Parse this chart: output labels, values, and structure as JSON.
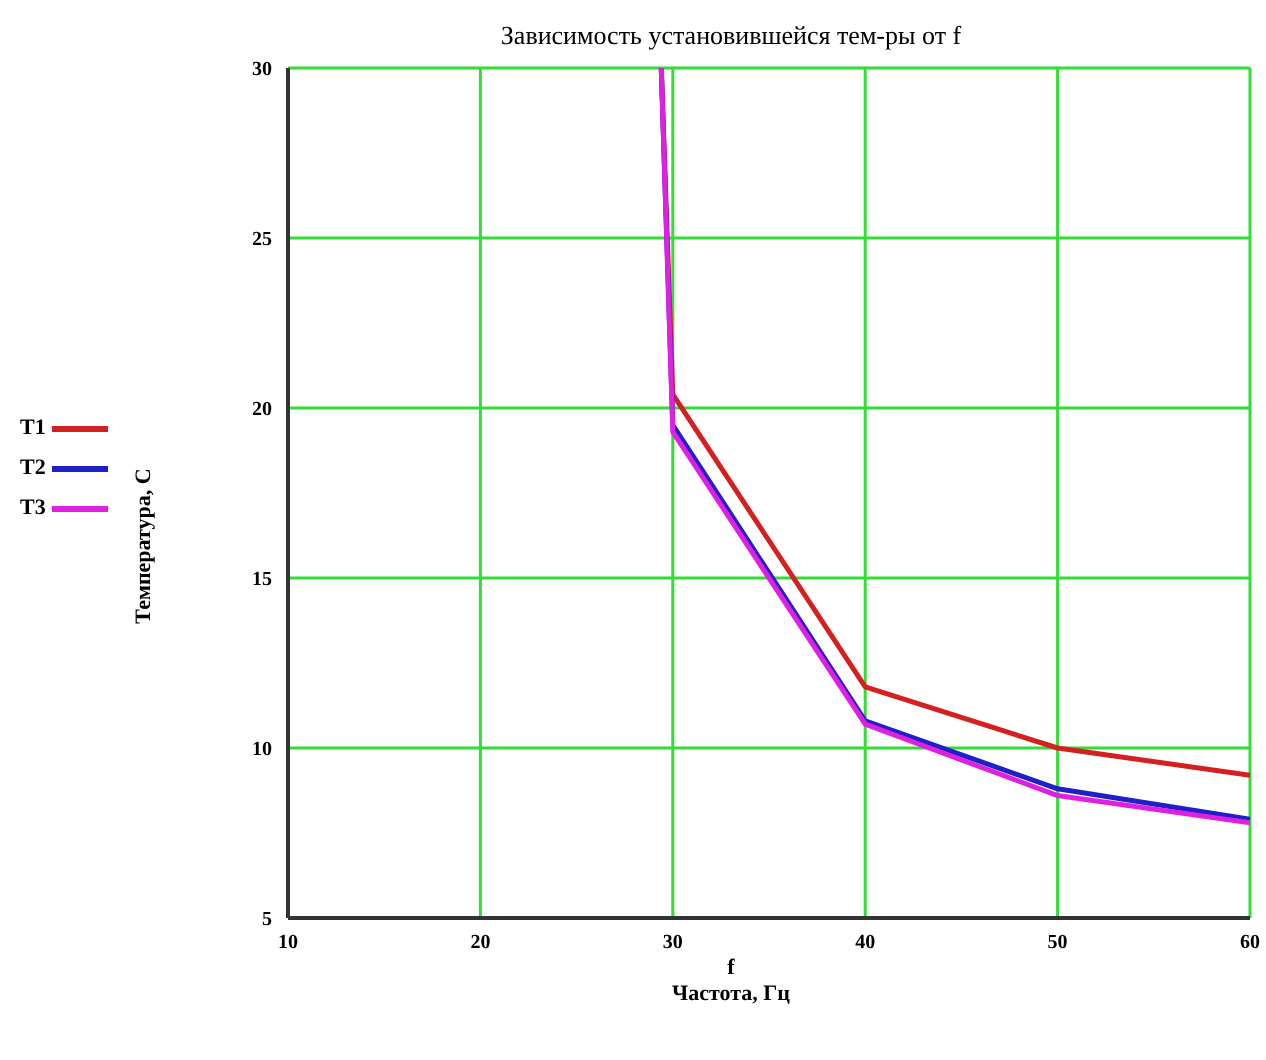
{
  "chart_data": {
    "type": "line",
    "title": "Зависимость установившейся тем-ры от f",
    "xlabel": "f\nЧастота, Гц",
    "ylabel": "Температура, С",
    "series": [
      {
        "name": "T1",
        "color": "#d42020",
        "x": [
          29.4,
          30,
          40,
          50,
          60
        ],
        "values": [
          30,
          20.4,
          11.8,
          10.0,
          9.2
        ]
      },
      {
        "name": "T2",
        "color": "#2020c8",
        "x": [
          29.4,
          30,
          40,
          50,
          60
        ],
        "values": [
          30,
          19.5,
          10.8,
          8.8,
          7.9
        ]
      },
      {
        "name": "T3",
        "color": "#e020e0",
        "x": [
          29.4,
          30,
          40,
          50,
          60
        ],
        "values": [
          30,
          19.3,
          10.7,
          8.6,
          7.8
        ]
      }
    ],
    "xlim": [
      10,
      60
    ],
    "xticks": [
      10,
      20,
      30,
      40,
      50,
      60
    ],
    "ylim": [
      5,
      30
    ],
    "yticks": [
      5,
      10,
      15,
      20,
      25,
      30
    ],
    "grid": true,
    "legend": "left",
    "marker": "none",
    "line_style": "solid"
  }
}
